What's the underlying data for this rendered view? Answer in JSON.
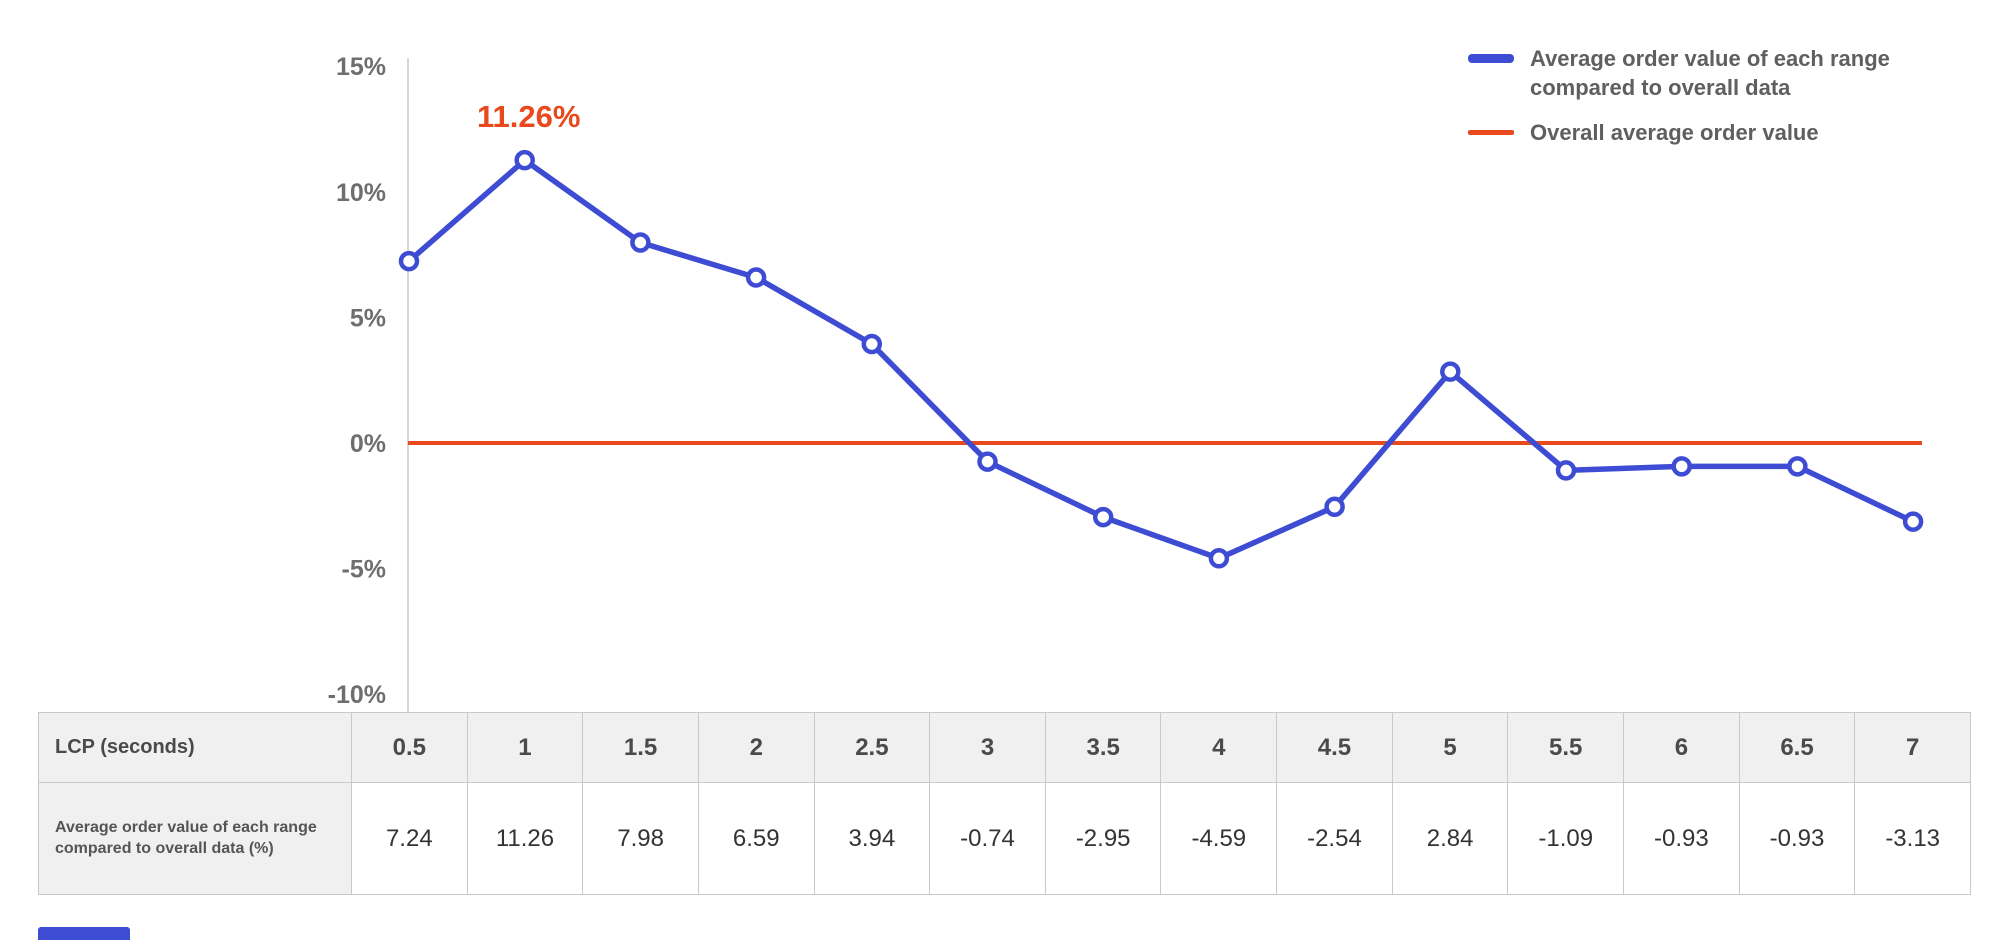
{
  "chart_data": {
    "type": "line",
    "title": "",
    "x_label": "LCP (seconds)",
    "x": [
      "0.5",
      "1",
      "1.5",
      "2",
      "2.5",
      "3",
      "3.5",
      "4",
      "4.5",
      "5",
      "5.5",
      "6",
      "6.5",
      "7"
    ],
    "series": [
      {
        "name": "Average order value of each range compared to overall data",
        "values": [
          7.24,
          11.26,
          7.98,
          6.59,
          3.94,
          -0.74,
          -2.95,
          -4.59,
          -2.54,
          2.84,
          -1.09,
          -0.93,
          -0.93,
          -3.13
        ],
        "color": "#3d4cd2",
        "marker": "circle"
      },
      {
        "name": "Overall average order value",
        "type": "reference-line",
        "value": 0,
        "color": "#e8491d"
      }
    ],
    "ylim": [
      -10,
      15
    ],
    "yticks": [
      "15%",
      "10%",
      "5%",
      "0%",
      "-5%",
      "-10%"
    ],
    "ytick_values": [
      15,
      10,
      5,
      0,
      -5,
      -10
    ],
    "grid": false,
    "legend_position": "top-right",
    "annotation": {
      "text": "11.26%",
      "point_index": 1,
      "color": "#e8491d"
    }
  },
  "legend": {
    "items": [
      {
        "label": "Average order value of each range compared to overall data",
        "color": "#3d4cd2",
        "shape": "thick-line"
      },
      {
        "label": "Overall average order value",
        "color": "#e8491d",
        "shape": "thin-line"
      }
    ]
  },
  "table": {
    "corner_label": "LCP (seconds)",
    "columns": [
      "0.5",
      "1",
      "1.5",
      "2",
      "2.5",
      "3",
      "3.5",
      "4",
      "4.5",
      "5",
      "5.5",
      "6",
      "6.5",
      "7"
    ],
    "rows": [
      {
        "label": "Average order value of each range compared to overall data (%)",
        "values": [
          "7.24",
          "11.26",
          "7.98",
          "6.59",
          "3.94",
          "-0.74",
          "-2.95",
          "-4.59",
          "-2.54",
          "2.84",
          "-1.09",
          "-0.93",
          "-0.93",
          "-3.13"
        ]
      }
    ]
  },
  "colors": {
    "series_blue": "#3d4cd2",
    "reference_red": "#e8491d",
    "axis_text": "#6e6e6e",
    "axis_line": "#d7d7d7",
    "table_border": "#c9c9c9",
    "table_header_bg": "#f0f0f0"
  }
}
